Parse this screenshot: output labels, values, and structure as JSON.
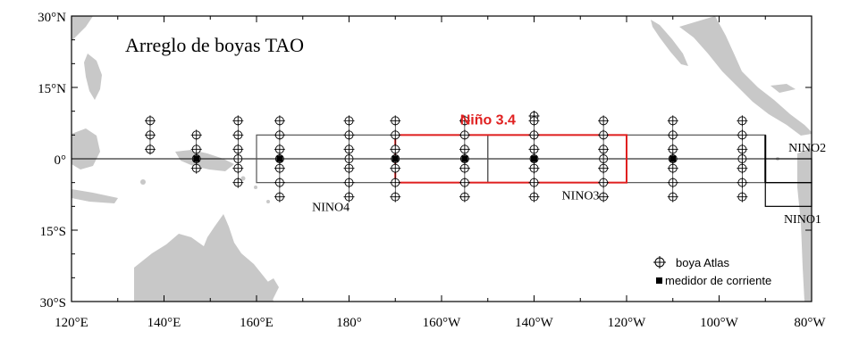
{
  "title": "Arreglo de boyas TAO",
  "lat_ticks": [
    {
      "lat": 30,
      "label": "30°N"
    },
    {
      "lat": 15,
      "label": "15°N"
    },
    {
      "lat": 0,
      "label": "0°"
    },
    {
      "lat": -15,
      "label": "15°S"
    },
    {
      "lat": -30,
      "label": "30°S"
    }
  ],
  "lon_ticks": [
    {
      "lon": 120,
      "label": "120°E"
    },
    {
      "lon": 140,
      "label": "140°E"
    },
    {
      "lon": 160,
      "label": "160°E"
    },
    {
      "lon": 180,
      "label": "180°"
    },
    {
      "lon": 200,
      "label": "160°W"
    },
    {
      "lon": 220,
      "label": "140°W"
    },
    {
      "lon": 240,
      "label": "120°W"
    },
    {
      "lon": 260,
      "label": "100°W"
    },
    {
      "lon": 280,
      "label": "80°W"
    }
  ],
  "regions": [
    {
      "id": "nino4",
      "label": "NINO4",
      "lon": [
        160,
        210
      ],
      "lat": [
        -5,
        5
      ],
      "color": "#555555",
      "label_lon": 172,
      "label_lat": -11
    },
    {
      "id": "nino3",
      "label": "NINO3",
      "lon": [
        210,
        270
      ],
      "lat": [
        -5,
        5
      ],
      "color": "#555555",
      "label_lon": 226,
      "label_lat": -8.5
    },
    {
      "id": "nino34",
      "label": "Niño 3.4",
      "lon": [
        190,
        240
      ],
      "lat": [
        -5,
        5
      ],
      "color": "#e02020",
      "label_lon": 204,
      "label_lat": 7.2
    },
    {
      "id": "nino12",
      "label": "NINO2",
      "lon": [
        270,
        280
      ],
      "lat": [
        -10,
        0
      ],
      "color": "#000000",
      "label_lon": 275,
      "label_lat": 1.5
    },
    {
      "id": "nino1",
      "label": "NINO1",
      "lon": [
        270,
        280
      ],
      "lat": [
        -10,
        0
      ],
      "color": "#000000",
      "label_lon": 274,
      "label_lat": -13.5
    }
  ],
  "buoy_columns": [
    {
      "lon": 137,
      "lats": [
        8,
        5,
        2
      ]
    },
    {
      "lon": 147,
      "lats": [
        5,
        2,
        0,
        -2
      ]
    },
    {
      "lon": 156,
      "lats": [
        8,
        5,
        2,
        0,
        -2,
        -5
      ]
    },
    {
      "lon": 165,
      "lats": [
        8,
        5,
        2,
        0,
        -2,
        -5,
        -8
      ]
    },
    {
      "lon": 180,
      "lats": [
        8,
        5,
        2,
        0,
        -2,
        -5,
        -8
      ]
    },
    {
      "lon": 190,
      "lats": [
        8,
        5,
        2,
        0,
        -2,
        -5,
        -8
      ]
    },
    {
      "lon": 205,
      "lats": [
        8,
        5,
        2,
        0,
        -2,
        -5,
        -8
      ]
    },
    {
      "lon": 220,
      "lats": [
        9,
        8,
        5,
        2,
        0,
        -2,
        -5,
        -8
      ]
    },
    {
      "lon": 235,
      "lats": [
        8,
        5,
        2,
        0,
        -2,
        -5,
        -8
      ]
    },
    {
      "lon": 250,
      "lats": [
        8,
        5,
        2,
        0,
        -2,
        -5,
        -8
      ]
    },
    {
      "lon": 265,
      "lats": [
        8,
        5,
        2,
        0,
        -2,
        -5,
        -8
      ]
    }
  ],
  "current_meters": [
    {
      "lon": 147,
      "lat": 0
    },
    {
      "lon": 165,
      "lat": 0
    },
    {
      "lon": 190,
      "lat": 0
    },
    {
      "lon": 205,
      "lat": 0
    },
    {
      "lon": 220,
      "lat": 0
    },
    {
      "lon": 250,
      "lat": 0
    }
  ],
  "legend": {
    "buoy_label": "boya Atlas",
    "meter_label": "medidor de corriente"
  },
  "colors": {
    "land": "#c8c8c8",
    "axis": "#000000",
    "nino34": "#e02020"
  }
}
